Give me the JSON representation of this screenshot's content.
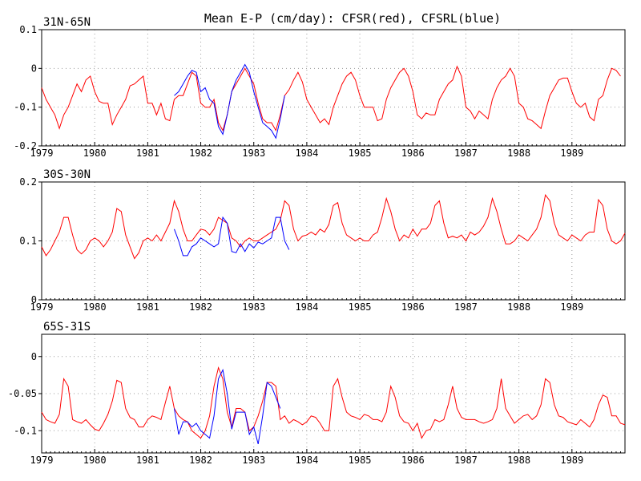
{
  "title": "Mean E-P (cm/day): CFSR(red), CFSRL(blue)",
  "chart_data": [
    {
      "type": "line",
      "region": "31N-65N",
      "x_start": 1979.0,
      "x_step": 0.0833333,
      "ylim": [
        -0.2,
        0.1
      ],
      "y_ticks": [
        0.1,
        0,
        -0.1,
        -0.2
      ],
      "y_tick_labels": [
        "0.1",
        "0",
        "-0.1",
        "-0.2"
      ],
      "x_ticks": [
        1979,
        1980,
        1981,
        1982,
        1983,
        1984,
        1985,
        1986,
        1987,
        1988,
        1989
      ],
      "x_tick_labels": [
        "1979",
        "1980",
        "1981",
        "1982",
        "1983",
        "1984",
        "1985",
        "1986",
        "1987",
        "1988",
        "1989"
      ],
      "grid": true,
      "colors": {
        "red": "#ff0000",
        "blue": "#0000ff"
      },
      "series": [
        {
          "name": "CFSR",
          "color": "red",
          "offset_months": 0,
          "values": [
            -0.05,
            -0.08,
            -0.1,
            -0.12,
            -0.155,
            -0.12,
            -0.1,
            -0.07,
            -0.04,
            -0.06,
            -0.03,
            -0.02,
            -0.06,
            -0.085,
            -0.09,
            -0.09,
            -0.145,
            -0.12,
            -0.1,
            -0.08,
            -0.045,
            -0.04,
            -0.03,
            -0.02,
            -0.09,
            -0.09,
            -0.12,
            -0.09,
            -0.13,
            -0.135,
            -0.08,
            -0.07,
            -0.07,
            -0.04,
            -0.01,
            -0.02,
            -0.09,
            -0.1,
            -0.1,
            -0.08,
            -0.14,
            -0.16,
            -0.12,
            -0.06,
            -0.04,
            -0.02,
            0.0,
            -0.02,
            -0.04,
            -0.09,
            -0.13,
            -0.14,
            -0.14,
            -0.16,
            -0.12,
            -0.07,
            -0.055,
            -0.03,
            -0.01,
            -0.035,
            -0.08,
            -0.1,
            -0.12,
            -0.14,
            -0.13,
            -0.145,
            -0.1,
            -0.07,
            -0.04,
            -0.02,
            -0.01,
            -0.03,
            -0.07,
            -0.1,
            -0.1,
            -0.1,
            -0.135,
            -0.13,
            -0.08,
            -0.05,
            -0.03,
            -0.01,
            0.0,
            -0.02,
            -0.06,
            -0.12,
            -0.13,
            -0.115,
            -0.12,
            -0.12,
            -0.08,
            -0.06,
            -0.04,
            -0.03,
            0.005,
            -0.02,
            -0.1,
            -0.11,
            -0.13,
            -0.11,
            -0.12,
            -0.13,
            -0.08,
            -0.05,
            -0.03,
            -0.02,
            0.0,
            -0.02,
            -0.09,
            -0.1,
            -0.13,
            -0.135,
            -0.145,
            -0.155,
            -0.11,
            -0.07,
            -0.05,
            -0.03,
            -0.025,
            -0.025,
            -0.06,
            -0.09,
            -0.1,
            -0.09,
            -0.125,
            -0.135,
            -0.08,
            -0.07,
            -0.03,
            0.0,
            -0.005,
            -0.02
          ]
        },
        {
          "name": "CFSRL",
          "color": "blue",
          "offset_months": 30,
          "values": [
            -0.07,
            -0.06,
            -0.04,
            -0.02,
            -0.005,
            -0.01,
            -0.06,
            -0.05,
            -0.08,
            -0.09,
            -0.15,
            -0.17,
            -0.12,
            -0.06,
            -0.03,
            -0.01,
            0.01,
            -0.01,
            -0.06,
            -0.1,
            -0.14,
            -0.15,
            -0.16,
            -0.18,
            -0.13,
            -0.07
          ]
        }
      ]
    },
    {
      "type": "line",
      "region": "30S-30N",
      "x_start": 1979.0,
      "x_step": 0.0833333,
      "ylim": [
        0,
        0.2
      ],
      "y_ticks": [
        0.2,
        0.1,
        0
      ],
      "y_tick_labels": [
        "0.2",
        "0.1",
        "0"
      ],
      "x_ticks": [
        1979,
        1980,
        1981,
        1982,
        1983,
        1984,
        1985,
        1986,
        1987,
        1988,
        1989
      ],
      "x_tick_labels": [
        "1979",
        "1980",
        "1981",
        "1982",
        "1983",
        "1984",
        "1985",
        "1986",
        "1987",
        "1988",
        "1989"
      ],
      "grid": true,
      "colors": {
        "red": "#ff0000",
        "blue": "#0000ff"
      },
      "series": [
        {
          "name": "CFSR",
          "color": "red",
          "offset_months": 0,
          "values": [
            0.09,
            0.075,
            0.085,
            0.1,
            0.115,
            0.14,
            0.14,
            0.11,
            0.085,
            0.078,
            0.085,
            0.1,
            0.105,
            0.1,
            0.09,
            0.1,
            0.115,
            0.155,
            0.15,
            0.11,
            0.09,
            0.07,
            0.08,
            0.1,
            0.105,
            0.1,
            0.11,
            0.1,
            0.115,
            0.13,
            0.168,
            0.15,
            0.12,
            0.1,
            0.1,
            0.11,
            0.12,
            0.118,
            0.11,
            0.12,
            0.14,
            0.135,
            0.13,
            0.105,
            0.1,
            0.09,
            0.1,
            0.105,
            0.1,
            0.1,
            0.105,
            0.11,
            0.115,
            0.12,
            0.135,
            0.168,
            0.16,
            0.12,
            0.1,
            0.108,
            0.11,
            0.115,
            0.11,
            0.12,
            0.115,
            0.128,
            0.16,
            0.165,
            0.13,
            0.11,
            0.105,
            0.1,
            0.105,
            0.1,
            0.1,
            0.11,
            0.115,
            0.14,
            0.172,
            0.15,
            0.12,
            0.1,
            0.11,
            0.105,
            0.12,
            0.108,
            0.12,
            0.12,
            0.13,
            0.16,
            0.168,
            0.13,
            0.105,
            0.108,
            0.105,
            0.11,
            0.1,
            0.115,
            0.11,
            0.115,
            0.125,
            0.14,
            0.172,
            0.15,
            0.12,
            0.095,
            0.095,
            0.1,
            0.11,
            0.105,
            0.1,
            0.11,
            0.12,
            0.14,
            0.178,
            0.168,
            0.13,
            0.11,
            0.105,
            0.1,
            0.11,
            0.105,
            0.1,
            0.11,
            0.115,
            0.115,
            0.17,
            0.16,
            0.12,
            0.1,
            0.095,
            0.1,
            0.113
          ]
        },
        {
          "name": "CFSRL",
          "color": "blue",
          "offset_months": 30,
          "values": [
            0.12,
            0.1,
            0.075,
            0.075,
            0.09,
            0.095,
            0.105,
            0.1,
            0.095,
            0.09,
            0.095,
            0.14,
            0.13,
            0.082,
            0.08,
            0.095,
            0.082,
            0.095,
            0.088,
            0.098,
            0.095,
            0.1,
            0.105,
            0.14,
            0.14,
            0.1,
            0.085
          ]
        }
      ]
    },
    {
      "type": "line",
      "region": "65S-31S",
      "x_start": 1979.0,
      "x_step": 0.0833333,
      "ylim": [
        -0.13,
        0.03
      ],
      "y_ticks": [
        0,
        -0.05,
        -0.1
      ],
      "y_tick_labels": [
        "0",
        "-0.05",
        "-0.1"
      ],
      "x_ticks": [
        1979,
        1980,
        1981,
        1982,
        1983,
        1984,
        1985,
        1986,
        1987,
        1988,
        1989
      ],
      "x_tick_labels": [
        "1979",
        "1980",
        "1981",
        "1982",
        "1983",
        "1984",
        "1985",
        "1986",
        "1987",
        "1988",
        "1989"
      ],
      "grid": true,
      "colors": {
        "red": "#ff0000",
        "blue": "#0000ff"
      },
      "series": [
        {
          "name": "CFSR",
          "color": "red",
          "offset_months": 0,
          "values": [
            -0.075,
            -0.085,
            -0.088,
            -0.09,
            -0.078,
            -0.03,
            -0.04,
            -0.085,
            -0.088,
            -0.09,
            -0.085,
            -0.092,
            -0.098,
            -0.1,
            -0.09,
            -0.078,
            -0.06,
            -0.032,
            -0.035,
            -0.07,
            -0.082,
            -0.085,
            -0.095,
            -0.095,
            -0.085,
            -0.08,
            -0.082,
            -0.085,
            -0.062,
            -0.04,
            -0.07,
            -0.08,
            -0.085,
            -0.088,
            -0.1,
            -0.105,
            -0.11,
            -0.1,
            -0.08,
            -0.04,
            -0.015,
            -0.03,
            -0.075,
            -0.095,
            -0.07,
            -0.07,
            -0.075,
            -0.1,
            -0.095,
            -0.08,
            -0.06,
            -0.035,
            -0.035,
            -0.04,
            -0.085,
            -0.08,
            -0.09,
            -0.085,
            -0.088,
            -0.092,
            -0.088,
            -0.08,
            -0.082,
            -0.09,
            -0.1,
            -0.1,
            -0.04,
            -0.03,
            -0.055,
            -0.075,
            -0.08,
            -0.082,
            -0.085,
            -0.078,
            -0.08,
            -0.085,
            -0.085,
            -0.088,
            -0.075,
            -0.04,
            -0.055,
            -0.08,
            -0.088,
            -0.09,
            -0.1,
            -0.09,
            -0.11,
            -0.1,
            -0.098,
            -0.085,
            -0.088,
            -0.085,
            -0.065,
            -0.04,
            -0.07,
            -0.082,
            -0.085,
            -0.085,
            -0.085,
            -0.088,
            -0.09,
            -0.088,
            -0.085,
            -0.07,
            -0.03,
            -0.07,
            -0.08,
            -0.09,
            -0.085,
            -0.08,
            -0.078,
            -0.085,
            -0.08,
            -0.065,
            -0.03,
            -0.035,
            -0.065,
            -0.08,
            -0.082,
            -0.088,
            -0.09,
            -0.092,
            -0.085,
            -0.09,
            -0.095,
            -0.085,
            -0.065,
            -0.052,
            -0.055,
            -0.08,
            -0.08,
            -0.09,
            -0.092
          ]
        },
        {
          "name": "CFSRL",
          "color": "blue",
          "offset_months": 30,
          "values": [
            -0.07,
            -0.105,
            -0.088,
            -0.088,
            -0.095,
            -0.09,
            -0.1,
            -0.105,
            -0.11,
            -0.08,
            -0.03,
            -0.018,
            -0.05,
            -0.098,
            -0.075,
            -0.075,
            -0.075,
            -0.105,
            -0.095,
            -0.118,
            -0.08,
            -0.035,
            -0.04,
            -0.055,
            -0.07
          ]
        }
      ]
    }
  ]
}
